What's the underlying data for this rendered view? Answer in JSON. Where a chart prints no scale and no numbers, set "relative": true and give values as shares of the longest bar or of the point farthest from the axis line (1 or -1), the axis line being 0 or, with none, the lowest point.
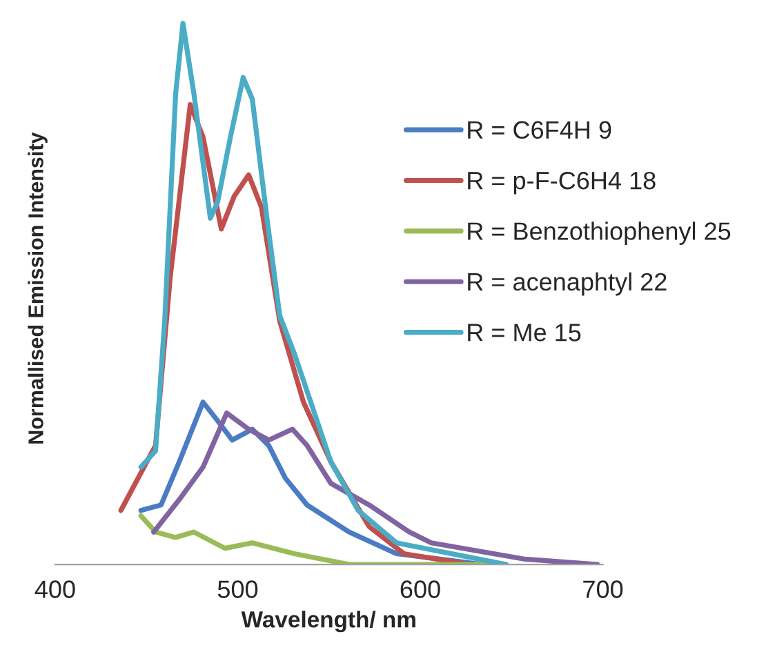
{
  "chart_data": {
    "type": "line",
    "relative": true,
    "xlabel": "Wavelength/ nm",
    "ylabel": "Normallised Emission Intensity",
    "xlim": [
      400,
      700
    ],
    "xticks": [
      400,
      500,
      600,
      700
    ],
    "grid": false,
    "legend": "right",
    "marker": "none",
    "line_style": "solid",
    "series": [
      {
        "name": "R = C6F4H 9",
        "color": "#4a7cc4",
        "x": [
          447,
          458,
          468,
          481,
          488,
          497,
          508,
          517,
          526,
          538,
          561,
          587,
          634
        ],
        "values": [
          0.1,
          0.11,
          0.19,
          0.3,
          0.27,
          0.23,
          0.25,
          0.22,
          0.16,
          0.11,
          0.06,
          0.02,
          0.0
        ]
      },
      {
        "name": "R = p-F-C6H4 18",
        "color": "#c0504d",
        "x": [
          436,
          455,
          463,
          474,
          481,
          491,
          498,
          506,
          513,
          523,
          536,
          551,
          572,
          591,
          627
        ],
        "values": [
          0.1,
          0.22,
          0.53,
          0.85,
          0.79,
          0.62,
          0.68,
          0.72,
          0.66,
          0.45,
          0.3,
          0.19,
          0.07,
          0.02,
          0.0
        ]
      },
      {
        "name": "R = Benzothiophenyl 25",
        "color": "#9bbb59",
        "x": [
          447,
          455,
          466,
          476,
          493,
          508,
          531,
          561,
          640
        ],
        "values": [
          0.09,
          0.06,
          0.05,
          0.06,
          0.03,
          0.04,
          0.02,
          0.0,
          0.0
        ]
      },
      {
        "name": "R = acenaphtyl 22",
        "color": "#8064a2",
        "x": [
          454,
          468,
          481,
          494,
          506,
          517,
          530,
          538,
          551,
          572,
          594,
          606,
          657,
          697
        ],
        "values": [
          0.06,
          0.12,
          0.18,
          0.28,
          0.25,
          0.23,
          0.25,
          0.22,
          0.15,
          0.11,
          0.06,
          0.04,
          0.01,
          0.0
        ]
      },
      {
        "name": "R = Me 15",
        "color": "#4bacc6",
        "x": [
          447,
          455,
          460,
          466,
          470,
          476,
          485,
          489,
          496,
          503,
          508,
          516,
          523,
          531,
          538,
          551,
          566,
          587,
          647
        ],
        "values": [
          0.18,
          0.21,
          0.45,
          0.87,
          1.0,
          0.87,
          0.64,
          0.67,
          0.79,
          0.9,
          0.86,
          0.64,
          0.46,
          0.39,
          0.32,
          0.19,
          0.1,
          0.04,
          0.0
        ]
      }
    ]
  }
}
